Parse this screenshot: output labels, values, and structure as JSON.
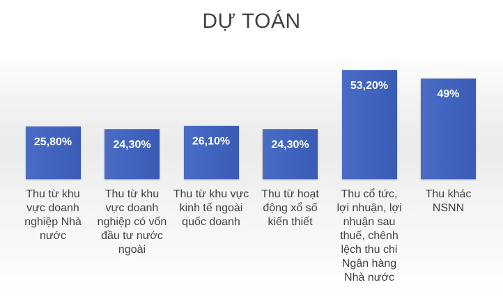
{
  "chart_data": {
    "type": "bar",
    "title": "DỰ TOÁN",
    "categories": [
      "Thu từ khu vực doanh nghiệp Nhà nước",
      "Thu từ khu vực doanh nghiệp có vốn đầu tư nước ngoài",
      "Thu từ khu vực kinh tế ngoài quốc doanh",
      "Thu từ hoạt động xổ số kiến thiết",
      "Thu cổ tức, lợi nhuận, lợi nhuận sau thuế, chênh lệch thu chi Ngân hàng Nhà nước",
      "Thu khác NSNN"
    ],
    "category_lines": [
      [
        "Thu từ khu",
        "vực doanh",
        "nghiệp Nhà",
        "nước"
      ],
      [
        "Thu từ khu",
        "vực doanh",
        "nghiệp có vốn",
        "đầu tư nước",
        "ngoài"
      ],
      [
        "Thu từ khu vực",
        "kinh tế ngoài",
        "quốc doanh"
      ],
      [
        "Thu từ hoạt",
        "động xổ số",
        "kiến thiết"
      ],
      [
        "Thu cổ tức,",
        "lợi nhuận, lợi",
        "nhuận sau",
        "thuế, chênh",
        "lệch thu chi",
        "Ngân hàng",
        "Nhà nước"
      ],
      [
        "Thu khác",
        "NSNN"
      ]
    ],
    "values": [
      25.8,
      24.3,
      26.1,
      24.3,
      53.2,
      49
    ],
    "value_labels": [
      "25,80%",
      "24,30%",
      "26,10%",
      "24,30%",
      "53,20%",
      "49%"
    ],
    "bar_color": "#4064bf",
    "grid": false,
    "legend": "none"
  }
}
